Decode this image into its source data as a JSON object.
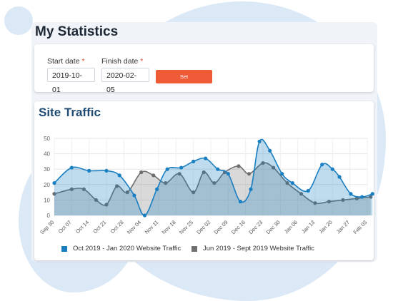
{
  "header": {
    "title": "My Statistics"
  },
  "form": {
    "start_label": "Start date",
    "finish_label": "Finish date",
    "required_mark": "*",
    "start_value": "2019-10-01",
    "finish_value": "2020-02-05",
    "set_label": "Set"
  },
  "chart_section": {
    "title": "Site Traffic"
  },
  "colors": {
    "series1": "#1a7fc1",
    "series2": "#707070",
    "button": "#ef5b36"
  },
  "chart_data": {
    "type": "area",
    "title": "Site Traffic",
    "xlabel": "",
    "ylabel": "",
    "ylim": [
      0,
      50
    ],
    "yticks": [
      0,
      10,
      20,
      30,
      40,
      50
    ],
    "grid": true,
    "legend_position": "bottom",
    "categories": [
      "Sep 30",
      "Oct 07",
      "Oct 14",
      "Oct 21",
      "Oct 28",
      "Nov 04",
      "Nov 11",
      "Nov 18",
      "Nov 25",
      "Dec 02",
      "Dec 09",
      "Dec 16",
      "Dec 23",
      "Dec 30",
      "Jan 06",
      "Jan 13",
      "Jan 20",
      "Jan 27",
      "Feb 03"
    ],
    "series": [
      {
        "name": "Oct 2019 - Jan 2020 Website Traffic",
        "x": [
          0,
          1,
          2,
          3,
          3.75,
          4.6,
          5.2,
          5.9,
          6.5,
          7.3,
          8,
          8.7,
          9.4,
          10,
          10.7,
          11.3,
          11.8,
          12.4,
          13.1,
          13.7,
          14.6,
          15.4,
          16,
          16.4,
          17.05,
          17.7,
          18.3
        ],
        "values": [
          21,
          31,
          29,
          29,
          26,
          13,
          0,
          17,
          30,
          31,
          35,
          37,
          30,
          27,
          9,
          17,
          48,
          42,
          27,
          21,
          16,
          33,
          30,
          25,
          14,
          12,
          14
        ]
      },
      {
        "name": "Jun 2019 - Sept 2019 Website Traffic",
        "x": [
          0,
          1,
          1.7,
          2.4,
          3.0,
          3.6,
          4.2,
          5.0,
          5.7,
          6.4,
          7.2,
          8.0,
          8.6,
          9.2,
          9.8,
          10.6,
          11.2,
          12.0,
          12.6,
          13.4,
          14.2,
          15.0,
          15.8,
          16.6,
          17.4,
          18.2
        ],
        "values": [
          14,
          17,
          17,
          10,
          7,
          19,
          15,
          28,
          26,
          21,
          27,
          15,
          28,
          21,
          28,
          32,
          27,
          34,
          31,
          21,
          14,
          8,
          9,
          10,
          11,
          12
        ]
      }
    ]
  }
}
